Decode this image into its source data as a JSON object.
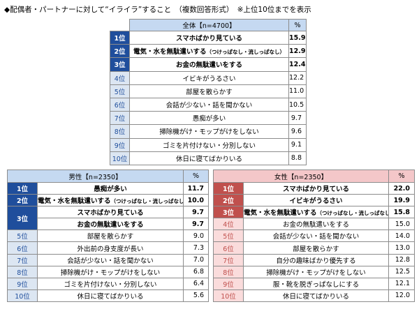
{
  "title": "◆配偶者・パートナーに対して“イライラ”すること　（複数回答形式）　※上位10位までを表示",
  "overall": {
    "header": "全体【n=4700】",
    "pct_header": "%",
    "groups": [
      {
        "rank": "1位",
        "items": [
          {
            "item": "スマホばかり見ている",
            "pct": "15.9"
          }
        ]
      },
      {
        "rank": "2位",
        "items": [
          {
            "item": "電気・水を無駄遣いする",
            "note": "（つけっぱなし・流しっぱなし）",
            "pct": "12.9"
          }
        ]
      },
      {
        "rank": "3位",
        "items": [
          {
            "item": "お金の無駄遣いをする",
            "pct": "12.4"
          }
        ]
      },
      {
        "rank": "4位",
        "items": [
          {
            "item": "イビキがうるさい",
            "pct": "12.2"
          }
        ]
      },
      {
        "rank": "5位",
        "items": [
          {
            "item": "部屋を散らかす",
            "pct": "11.0"
          }
        ]
      },
      {
        "rank": "6位",
        "items": [
          {
            "item": "会話が少ない・話を聞かない",
            "pct": "10.5"
          }
        ]
      },
      {
        "rank": "7位",
        "items": [
          {
            "item": "愚痴が多い",
            "pct": "9.7"
          }
        ]
      },
      {
        "rank": "8位",
        "items": [
          {
            "item": "掃除機がけ・モップがけをしない",
            "pct": "9.6"
          }
        ]
      },
      {
        "rank": "9位",
        "items": [
          {
            "item": "ゴミを片付けない・分別しない",
            "pct": "9.1"
          }
        ]
      },
      {
        "rank": "10位",
        "items": [
          {
            "item": "休日に寝てばかりいる",
            "pct": "8.8"
          }
        ]
      }
    ]
  },
  "male": {
    "header": "男性【n=2350】",
    "pct_header": "%",
    "groups": [
      {
        "rank": "1位",
        "items": [
          {
            "item": "愚痴が多い",
            "pct": "11.7"
          }
        ]
      },
      {
        "rank": "2位",
        "items": [
          {
            "item": "電気・水を無駄遣いする",
            "note": "（つけっぱなし・流しっぱなし）",
            "pct": "10.0"
          }
        ]
      },
      {
        "rank": "3位",
        "items": [
          {
            "item": "スマホばかり見ている",
            "pct": "9.7"
          },
          {
            "item": "お金の無駄遣いをする",
            "pct": "9.7"
          }
        ]
      },
      {
        "rank": "5位",
        "items": [
          {
            "item": "部屋を散らかす",
            "pct": "9.0"
          }
        ]
      },
      {
        "rank": "6位",
        "items": [
          {
            "item": "外出前の身支度が長い",
            "pct": "7.3"
          }
        ]
      },
      {
        "rank": "7位",
        "items": [
          {
            "item": "会話が少ない・話を聞かない",
            "pct": "7.0"
          }
        ]
      },
      {
        "rank": "8位",
        "items": [
          {
            "item": "掃除機がけ・モップがけをしない",
            "pct": "6.8"
          }
        ]
      },
      {
        "rank": "9位",
        "items": [
          {
            "item": "ゴミを片付けない・分別しない",
            "pct": "6.4"
          }
        ]
      },
      {
        "rank": "10位",
        "items": [
          {
            "item": "休日に寝てばかりいる",
            "pct": "5.6"
          }
        ]
      }
    ]
  },
  "female": {
    "header": "女性【n=2350】",
    "pct_header": "%",
    "groups": [
      {
        "rank": "1位",
        "items": [
          {
            "item": "スマホばかり見ている",
            "pct": "22.0"
          }
        ]
      },
      {
        "rank": "2位",
        "items": [
          {
            "item": "イビキがうるさい",
            "pct": "19.9"
          }
        ]
      },
      {
        "rank": "3位",
        "items": [
          {
            "item": "電気・水を無駄遣いする",
            "note": "（つけっぱなし・流しっぱなし）",
            "pct": "15.8"
          }
        ]
      },
      {
        "rank": "4位",
        "items": [
          {
            "item": "お金の無駄遣いをする",
            "pct": "15.0"
          }
        ]
      },
      {
        "rank": "5位",
        "items": [
          {
            "item": "会話が少ない・話を聞かない",
            "pct": "14.0"
          }
        ]
      },
      {
        "rank": "6位",
        "items": [
          {
            "item": "部屋を散らかす",
            "pct": "13.0"
          }
        ]
      },
      {
        "rank": "7位",
        "items": [
          {
            "item": "自分の趣味ばかり優先する",
            "pct": "12.8"
          }
        ]
      },
      {
        "rank": "8位",
        "items": [
          {
            "item": "掃除機がけ・モップがけをしない",
            "pct": "12.5"
          }
        ]
      },
      {
        "rank": "9位",
        "items": [
          {
            "item": "服・靴を脱ぎっぱなしにする",
            "pct": "12.1"
          }
        ]
      },
      {
        "rank": "10位",
        "items": [
          {
            "item": "休日に寝てばかりいる",
            "pct": "12.0"
          }
        ]
      }
    ]
  }
}
